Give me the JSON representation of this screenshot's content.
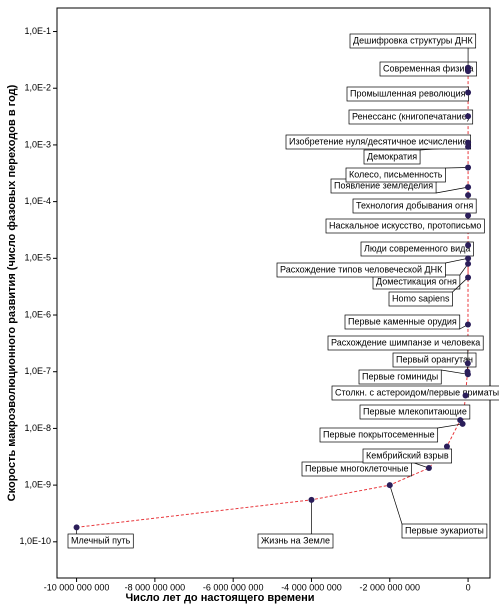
{
  "chart_data": {
    "type": "scatter",
    "x_label": "Число лет до настоящего времени",
    "y_label": "Скорость макроэволюционного развития (число фазовых переходов в год)",
    "log_y": true,
    "trendline": true,
    "color": "#2b1e5a",
    "trend_color": "#e8383d",
    "xlim": [
      -10500000000,
      560000000
    ],
    "ylim": [
      2.3e-11,
      0.26
    ],
    "xticks": [
      {
        "value": -10000000000,
        "label": "-10 000 000 000"
      },
      {
        "value": -8000000000,
        "label": "-8 000 000 000"
      },
      {
        "value": -6000000000,
        "label": "-6 000 000 000"
      },
      {
        "value": -4000000000,
        "label": "-4 000 000 000"
      },
      {
        "value": -2000000000,
        "label": "-2 000 000 000"
      },
      0
    ],
    "yticks": [
      {
        "value": 1e-10,
        "label": "1,0E-10"
      },
      {
        "value": 1e-09,
        "label": "1,0E-9"
      },
      {
        "value": 1e-08,
        "label": "1,0E-8"
      },
      {
        "value": 1e-07,
        "label": "1,0E-7"
      },
      {
        "value": 1e-06,
        "label": "1,0E-6"
      },
      {
        "value": 1e-05,
        "label": "1,0E-5"
      },
      {
        "value": 0.0001,
        "label": "1,0E-4"
      },
      {
        "value": 0.001,
        "label": "1,0E-3"
      },
      {
        "value": 0.01,
        "label": "1,0E-2"
      },
      {
        "value": 0.1,
        "label": "1,0E-1"
      }
    ],
    "labels": [
      "Млечный путь",
      "Жизнь на Земле",
      "Первые эукариоты",
      "Первые многоклеточные",
      "Кембрийский взрыв",
      "Первые млекопитающие",
      "Первые покрытосеменные",
      "Столкн. с астероидом/первые приматы",
      "Первый орангутан",
      "Расхождение шимпанзе и человека",
      "Первые гоминиды",
      "Первые каменные орудия",
      "Доместикация огня",
      "Homo sapiens",
      "Расхождение типов человеческой ДНК",
      "Люди современного вида",
      "Наскальное искусство, протописьмо",
      "Технология добывания огня",
      "Появление земледелия",
      "Колесо, письменность",
      "Демократия",
      "Изобретение нуля/десятичное исчисление",
      "Ренессанс (книгопечатание)",
      "Промышленная революция",
      "Современная физика",
      "Дешифровка структуры ДНК"
    ],
    "x": [
      -10000000000,
      -4000000000,
      -2000000000,
      -1000000000,
      -540000000,
      -200000000,
      -140000000,
      -65000000,
      -15000000,
      -6000000,
      -4000000,
      -2600000,
      -400000,
      -200000,
      -150000,
      -100000,
      -40000,
      -20000,
      -10000,
      -5500,
      -2500,
      -1500,
      -550,
      -250,
      -100,
      -60
    ],
    "values": [
      1.8e-10,
      5.5e-10,
      1e-09,
      2e-09,
      4.8e-09,
      1.4e-08,
      1.2e-08,
      3.8e-08,
      1e-07,
      1.4e-07,
      9e-08,
      6.8e-07,
      8e-06,
      4.6e-06,
      1e-05,
      1.7e-05,
      5.7e-05,
      0.00013,
      0.00018,
      0.0004,
      0.00093,
      0.0011,
      0.0032,
      0.0084,
      0.02,
      0.023
    ]
  }
}
